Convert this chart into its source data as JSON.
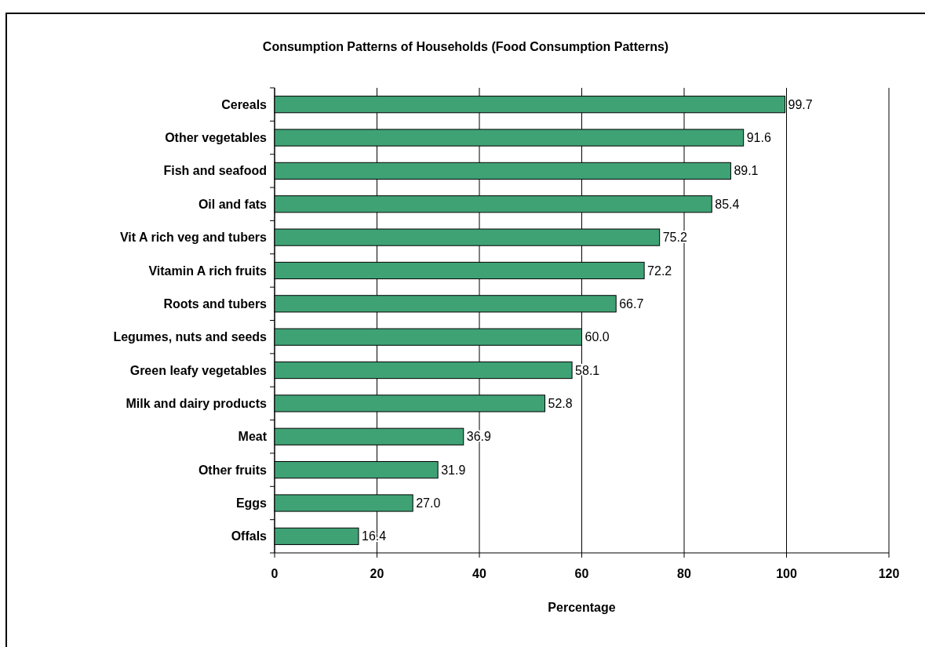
{
  "chart_data": {
    "type": "bar",
    "orientation": "horizontal",
    "title": "Consumption Patterns of Households (Food Consumption Patterns)",
    "xlabel": "Percentage",
    "categories": [
      "Cereals",
      "Other vegetables",
      "Fish and seafood",
      "Oil and fats",
      "Vit A rich veg and tubers",
      "Vitamin A rich fruits",
      "Roots and tubers",
      "Legumes, nuts and seeds",
      "Green leafy vegetables",
      "Milk and dairy products",
      "Meat",
      "Other fruits",
      "Eggs",
      "Offals"
    ],
    "values": [
      99.7,
      91.6,
      89.1,
      85.4,
      75.2,
      72.2,
      66.7,
      60.0,
      58.1,
      52.8,
      36.9,
      31.9,
      27.0,
      16.4
    ],
    "value_labels": [
      "99.7",
      "91.6",
      "89.1",
      "85.4",
      "75.2",
      "72.2",
      "66.7",
      "60.0",
      "58.1",
      "52.8",
      "36.9",
      "31.9",
      "27.0",
      "16.4"
    ],
    "color": "#3fa275",
    "xlim": [
      0,
      120
    ],
    "xticks": [
      0,
      20,
      40,
      60,
      80,
      100,
      120
    ],
    "grid": "x"
  }
}
